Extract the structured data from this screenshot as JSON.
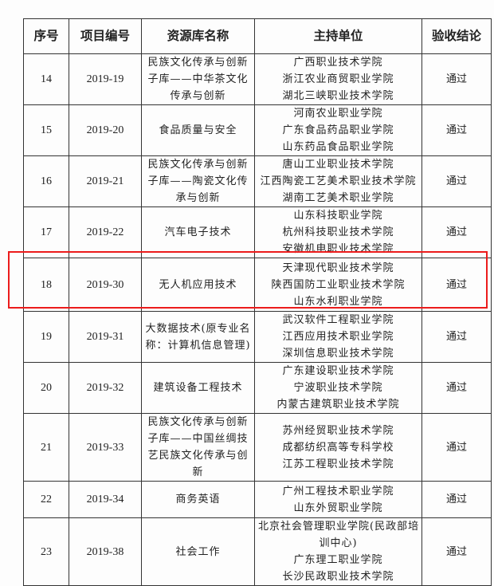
{
  "headers": [
    "序号",
    "项目编号",
    "资源库名称",
    "主持单位",
    "验收结论"
  ],
  "rows": [
    {
      "no": "14",
      "code": "2019-19",
      "name": [
        "民族文化传承与创新",
        "子库——中华茶文化",
        "传承与创新"
      ],
      "units": [
        "广西职业技术学院",
        "浙江农业商贸职业学院",
        "湖北三峡职业技术学院"
      ],
      "result": "通过"
    },
    {
      "no": "15",
      "code": "2019-20",
      "name": [
        "食品质量与安全"
      ],
      "units": [
        "河南农业职业学院",
        "广东食品药品职业学院",
        "山东药品食品职业学院"
      ],
      "result": "通过"
    },
    {
      "no": "16",
      "code": "2019-21",
      "name": [
        "民族文化传承与创新",
        "子库——陶瓷文化传",
        "承与创新"
      ],
      "units": [
        "唐山工业职业技术学院",
        "江西陶瓷工艺美术职业技术学院",
        "湖南工艺美术职业学院"
      ],
      "result": "通过"
    },
    {
      "no": "17",
      "code": "2019-22",
      "name": [
        "汽车电子技术"
      ],
      "units": [
        "山东科技职业学院",
        "杭州科技职业技术学院",
        "安徽机电职业技术学院"
      ],
      "result": "通过"
    },
    {
      "no": "18",
      "code": "2019-30",
      "name": [
        "无人机应用技术"
      ],
      "units": [
        "天津现代职业技术学院",
        "陕西国防工业职业技术学院",
        "山东水利职业学院"
      ],
      "result": "通过"
    },
    {
      "no": "19",
      "code": "2019-31",
      "name": [
        "大数据技术(原专业名",
        "称：计算机信息管理)"
      ],
      "units": [
        "武汉软件工程职业学院",
        "江西应用技术职业学院",
        "深圳信息职业技术学院"
      ],
      "result": "通过"
    },
    {
      "no": "20",
      "code": "2019-32",
      "name": [
        "建筑设备工程技术"
      ],
      "units": [
        "广东建设职业技术学院",
        "宁波职业技术学院",
        "内蒙古建筑职业技术学院"
      ],
      "result": "通过"
    },
    {
      "no": "21",
      "code": "2019-33",
      "name": [
        "民族文化传承与创新",
        "子库——中国丝绸技",
        "艺民族文化传承与创",
        "新"
      ],
      "units": [
        "苏州经贸职业技术学院",
        "成都纺织高等专科学校",
        "江苏工程职业技术学院"
      ],
      "result": "通过"
    },
    {
      "no": "22",
      "code": "2019-34",
      "name": [
        "商务英语"
      ],
      "units": [
        "广州工程技术职业学院",
        "山东外贸职业学院"
      ],
      "result": "通过"
    },
    {
      "no": "23",
      "code": "2019-38",
      "name": [
        "社会工作"
      ],
      "units": [
        "北京社会管理职业学院(民政部培",
        "训中心)",
        "广东理工职业学院",
        "长沙民政职业技术学院"
      ],
      "result": "通过"
    }
  ],
  "highlight_color": "#ec1c1c"
}
